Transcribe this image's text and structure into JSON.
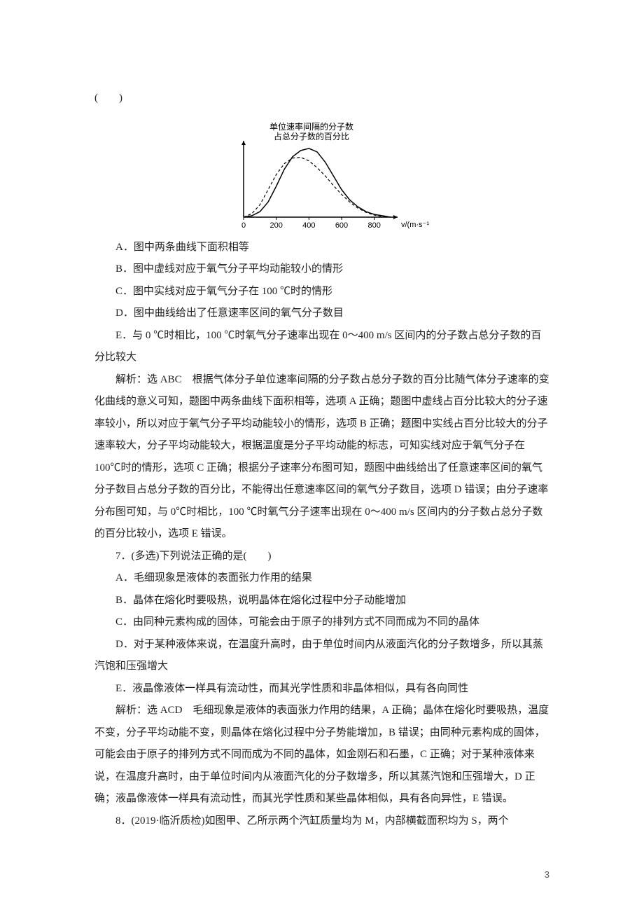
{
  "parens": "(　　)",
  "chart": {
    "type": "line",
    "background_color": "#ffffff",
    "axis_color": "#000000",
    "grid_color": "#e0e0e0",
    "ylabel_line1": "单位速率间隔的分子数",
    "ylabel_line2": "占总分子数的百分比",
    "ylabel_fontsize": 12,
    "xlabel": "v/(m·s⁻¹)",
    "xlabel_fontsize": 11,
    "xticks": [
      "0",
      "200",
      "400",
      "600",
      "800"
    ],
    "xtick_positions": [
      0,
      200,
      400,
      600,
      800
    ],
    "xtick_fontsize": 11,
    "xlim": [
      0,
      900
    ],
    "ylim": [
      0,
      1.05
    ],
    "curves": {
      "solid": {
        "color": "#000000",
        "width": 1.5,
        "dash": "none",
        "points": [
          [
            0,
            0
          ],
          [
            50,
            0.02
          ],
          [
            100,
            0.08
          ],
          [
            150,
            0.22
          ],
          [
            200,
            0.45
          ],
          [
            250,
            0.7
          ],
          [
            300,
            0.88
          ],
          [
            350,
            0.97
          ],
          [
            400,
            1.0
          ],
          [
            450,
            0.95
          ],
          [
            500,
            0.8
          ],
          [
            550,
            0.6
          ],
          [
            600,
            0.4
          ],
          [
            650,
            0.25
          ],
          [
            700,
            0.15
          ],
          [
            750,
            0.08
          ],
          [
            800,
            0.04
          ],
          [
            850,
            0.02
          ],
          [
            900,
            0.0
          ]
        ]
      },
      "dashed": {
        "color": "#000000",
        "width": 1.2,
        "dash": "4 3",
        "points": [
          [
            0,
            0
          ],
          [
            50,
            0.05
          ],
          [
            100,
            0.18
          ],
          [
            150,
            0.4
          ],
          [
            200,
            0.62
          ],
          [
            250,
            0.78
          ],
          [
            300,
            0.86
          ],
          [
            350,
            0.87
          ],
          [
            400,
            0.82
          ],
          [
            450,
            0.72
          ],
          [
            500,
            0.6
          ],
          [
            550,
            0.46
          ],
          [
            600,
            0.33
          ],
          [
            650,
            0.22
          ],
          [
            700,
            0.13
          ],
          [
            750,
            0.07
          ],
          [
            800,
            0.03
          ],
          [
            850,
            0.01
          ],
          [
            900,
            0.0
          ]
        ]
      }
    }
  },
  "options_q6": {
    "A": "A．图中两条曲线下面积相等",
    "B": "B．图中虚线对应于氧气分子平均动能较小的情形",
    "C": "C．图中实线对应于氧气分子在 100 ℃时的情形",
    "D": "D．图中曲线给出了任意速率区间的氧气分子数目",
    "E": "E．与 0 ℃时相比，100 ℃时氧气分子速率出现在 0～400 m/s 区间内的分子数占总分子数的百分比较大"
  },
  "analysis_q6": "解析：选 ABC　根据气体分子单位速率间隔的分子数占总分子数的百分比随气体分子速率的变化曲线的意义可知，题图中两条曲线下面积相等，选项 A 正确；题图中虚线占百分比较大的分子速率较小，所以对应于氧气分子平均动能较小的情形，选项 B 正确；题图中实线占百分比较大的分子速率较大，分子平均动能较大，根据温度是分子平均动能的标志，可知实线对应于氧气分子在 100℃时的情形，选项 C 正确；根据分子速率分布图可知，题图中曲线给出了任意速率区间的氧气分子数目占总分子数的百分比，不能得出任意速率区间的氧气分子数目，选项 D 错误；由分子速率分布图可知，与 0℃时相比，100 ℃时氧气分子速率出现在 0～400 m/s 区间内的分子数占总分子数的百分比较小，选项 E 错误。",
  "q7_stem": "7．(多选)下列说法正确的是(　　)",
  "options_q7": {
    "A": "A．毛细现象是液体的表面张力作用的结果",
    "B": "B．晶体在熔化时要吸热，说明晶体在熔化过程中分子动能增加",
    "C": "C．由同种元素构成的固体，可能会由于原子的排列方式不同而成为不同的晶体",
    "D": "D．对于某种液体来说，在温度升高时，由于单位时间内从液面汽化的分子数增多，所以其蒸汽饱和压强增大",
    "E": "E．液晶像液体一样具有流动性，而其光学性质和非晶体相似，具有各向同性"
  },
  "analysis_q7": "解析：选 ACD　毛细现象是液体的表面张力作用的结果，A 正确；晶体在熔化时要吸热，温度不变，分子平均动能不变，则晶体在熔化过程中分子势能增加，B 错误；由同种元素构成的固体，可能会由于原子的排列方式不同而成为不同的晶体，如金刚石和石墨，C 正确；对于某种液体来说，在温度升高时，由于单位时间内从液面汽化的分子数增多，所以其蒸汽饱和压强增大，D 正确；液晶像液体一样具有流动性，而其光学性质和某些晶体相似，具有各向异性，E 错误。",
  "q8_stem": "8．(2019·临沂质检)如图甲、乙所示两个汽缸质量均为 M，内部横截面积均为 S，两个",
  "page_number": "3"
}
